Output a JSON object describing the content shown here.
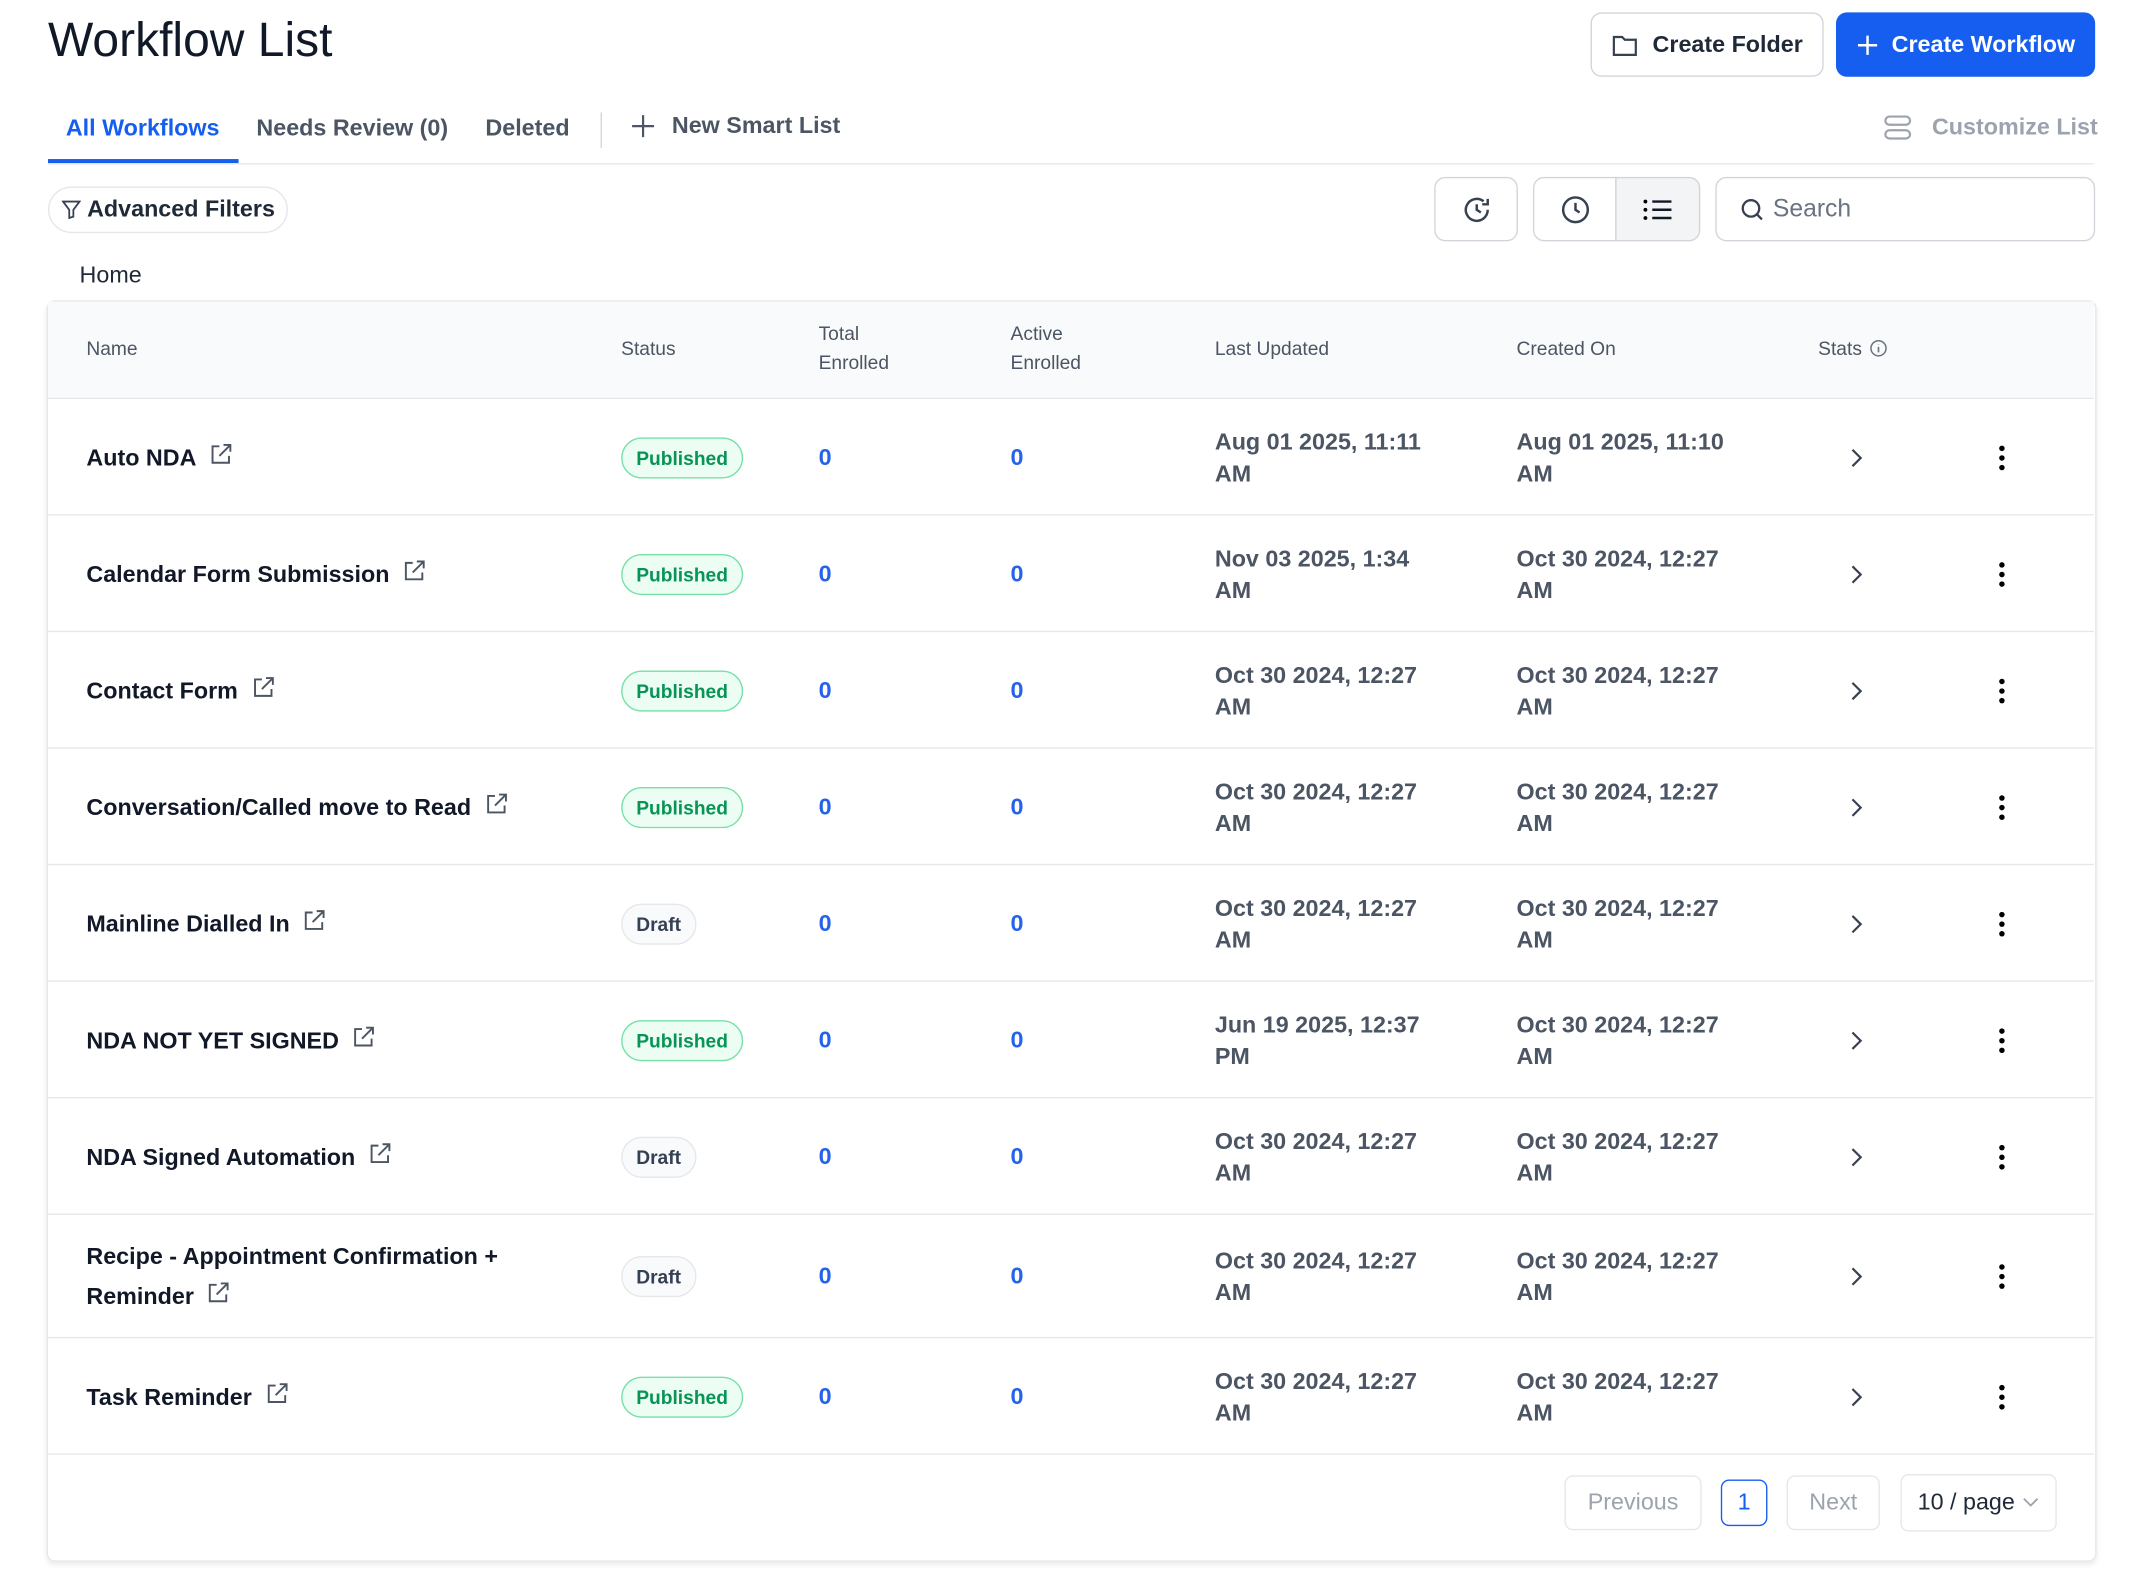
{
  "header": {
    "title": "Workflow List",
    "create_folder": "Create Folder",
    "create_workflow": "Create Workflow"
  },
  "tabs": [
    "All Workflows",
    "Needs Review (0)",
    "Deleted"
  ],
  "new_smart_list": "New Smart List",
  "customize_list": "Customize List",
  "toolbar": {
    "advanced_filters": "Advanced Filters",
    "search_placeholder": "Search"
  },
  "breadcrumb": "Home",
  "table": {
    "columns": [
      "Name",
      "Status",
      "Total Enrolled",
      "Active Enrolled",
      "Last Updated",
      "Created On",
      "Stats"
    ],
    "rows": [
      [
        "Auto NDA",
        "Published",
        0,
        0,
        "Aug 01 2025, 11:11 AM",
        "Aug 01 2025, 11:10 AM"
      ],
      [
        "Calendar Form Submission",
        "Published",
        0,
        0,
        "Nov 03 2025, 1:34 AM",
        "Oct 30 2024, 12:27 AM"
      ],
      [
        "Contact Form",
        "Published",
        0,
        0,
        "Oct 30 2024, 12:27 AM",
        "Oct 30 2024, 12:27 AM"
      ],
      [
        "Conversation/Called move to Read",
        "Published",
        0,
        0,
        "Oct 30 2024, 12:27 AM",
        "Oct 30 2024, 12:27 AM"
      ],
      [
        "Mainline Dialled In",
        "Draft",
        0,
        0,
        "Oct 30 2024, 12:27 AM",
        "Oct 30 2024, 12:27 AM"
      ],
      [
        "NDA NOT YET SIGNED",
        "Published",
        0,
        0,
        "Jun 19 2025, 12:37 PM",
        "Oct 30 2024, 12:27 AM"
      ],
      [
        "NDA Signed Automation",
        "Draft",
        0,
        0,
        "Oct 30 2024, 12:27 AM",
        "Oct 30 2024, 12:27 AM"
      ],
      [
        "Recipe - Appointment Confirmation + Reminder",
        "Draft",
        0,
        0,
        "Oct 30 2024, 12:27 AM",
        "Oct 30 2024, 12:27 AM"
      ],
      [
        "Task Reminder",
        "Published",
        0,
        0,
        "Oct 30 2024, 12:27 AM",
        "Oct 30 2024, 12:27 AM"
      ]
    ]
  },
  "pagination": {
    "previous": "Previous",
    "current": "1",
    "next": "Next",
    "page_size": "10 / page"
  }
}
